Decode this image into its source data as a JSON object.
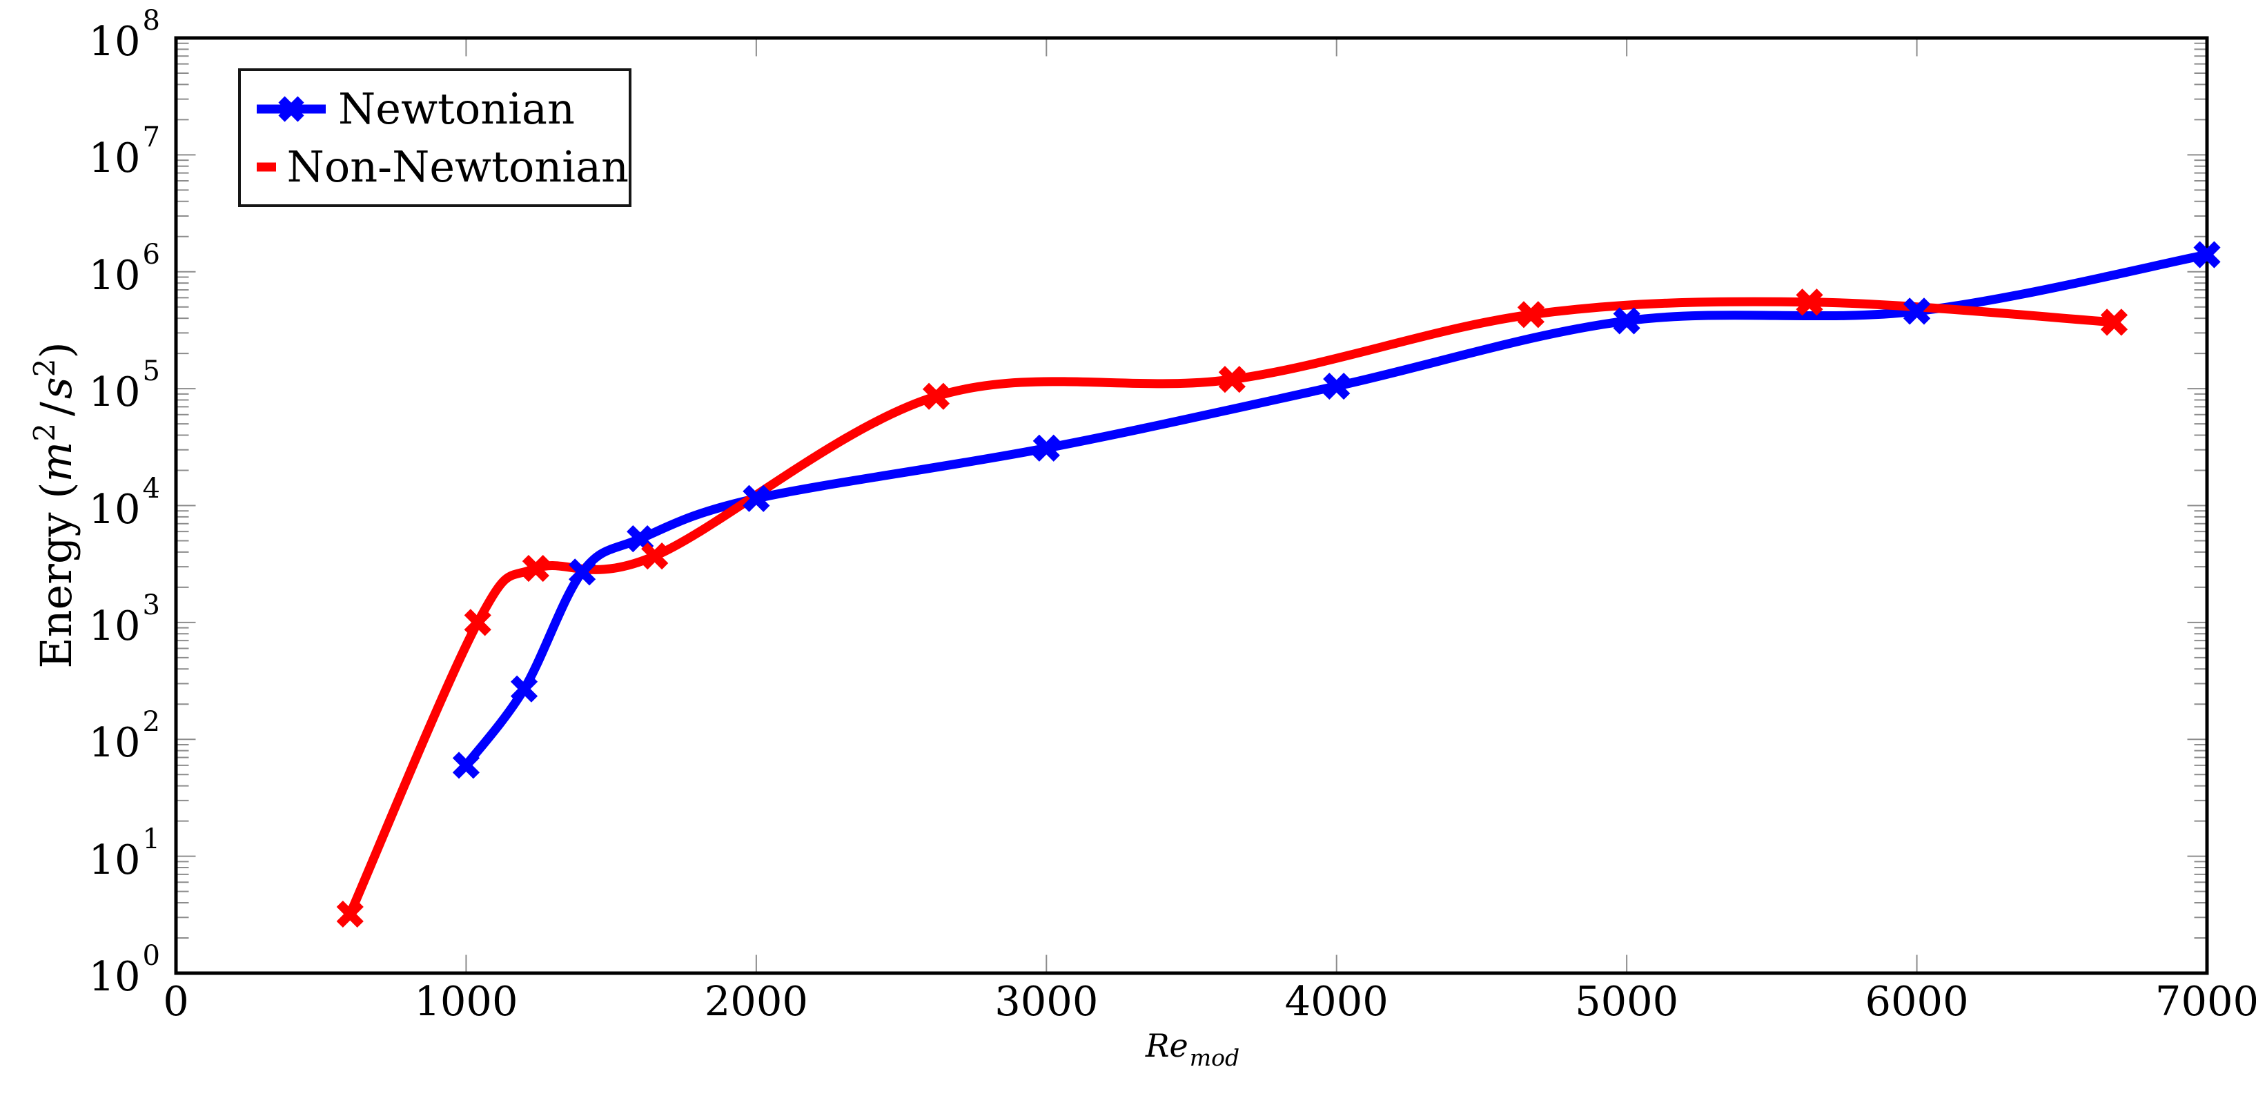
{
  "chart_data": {
    "type": "line",
    "title": "",
    "y_scale": "log",
    "grid": false,
    "legend_position": "top-left",
    "background_color": "#ffffff",
    "axis_color": "#000000",
    "tick_color": "#8c8c8c",
    "xlabel": "Re_mod",
    "xlabel_parts": {
      "base": "Re",
      "subscript": "mod"
    },
    "ylabel": "Energy (m²/s²)",
    "ylabel_parts": {
      "prefix": "Energy (",
      "num_var": "m",
      "num_exp": "2",
      "divider": "/",
      "den_var": "s",
      "den_exp": "2",
      "suffix": ")"
    },
    "xlim": [
      0,
      7000
    ],
    "ylim_exponents": [
      0,
      8
    ],
    "x_ticks": [
      0,
      1000,
      2000,
      3000,
      4000,
      5000,
      6000,
      7000
    ],
    "y_tick_base": "10",
    "y_tick_exponents": [
      0,
      1,
      2,
      3,
      4,
      5,
      6,
      7,
      8
    ],
    "marker": "x",
    "series": [
      {
        "name": "Newtonian",
        "color": "#0000ff",
        "points": [
          [
            1000,
            60
          ],
          [
            1200,
            270
          ],
          [
            1400,
            2700
          ],
          [
            1600,
            5200
          ],
          [
            2000,
            11500
          ],
          [
            3000,
            31000
          ],
          [
            4000,
            105000
          ],
          [
            5000,
            380000
          ],
          [
            6000,
            460000
          ],
          [
            7000,
            1400000
          ]
        ]
      },
      {
        "name": "Non-Newtonian",
        "color": "#ff0000",
        "points": [
          [
            600,
            3.2
          ],
          [
            1040,
            1000
          ],
          [
            1240,
            2900
          ],
          [
            1650,
            3700
          ],
          [
            2620,
            86000
          ],
          [
            3640,
            120000
          ],
          [
            4670,
            430000
          ],
          [
            5630,
            550000
          ],
          [
            6680,
            370000
          ]
        ]
      }
    ]
  }
}
